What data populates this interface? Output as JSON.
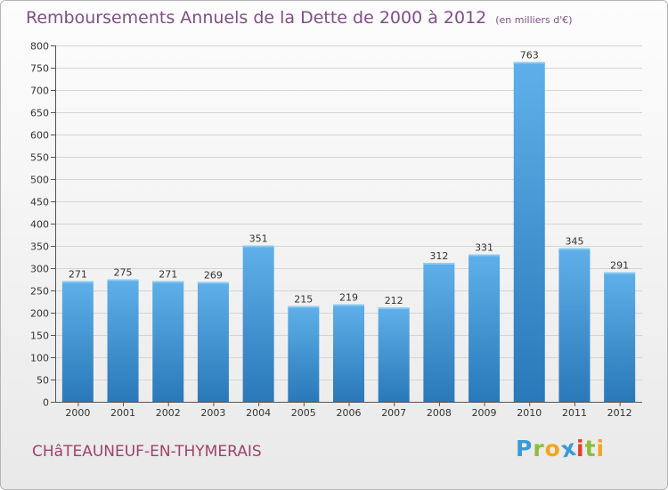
{
  "header": {
    "title": "Remboursements Annuels de la Dette de 2000 à 2012",
    "unit": "(en milliers d'€)"
  },
  "footer": {
    "commune": "CHâTEAUNEUF-EN-THYMERAIS",
    "logo_letters": [
      "P",
      "r",
      "o",
      "x",
      "i",
      "t",
      "i"
    ],
    "logo_colors": [
      "#3a9ad9",
      "#8cbd3d",
      "#f0a61f",
      "#3a9ad9",
      "#e2412e",
      "#8cbd3d",
      "#f0a61f"
    ]
  },
  "colors": {
    "bar_top": "#5fb0ea",
    "bar_bottom": "#2a78b8",
    "axis": "#555555",
    "grid": "#d4d4d4"
  },
  "chart_data": {
    "type": "bar",
    "title": "Remboursements Annuels de la Dette de 2000 à 2012",
    "xlabel": "",
    "ylabel": "",
    "ylim": [
      0,
      800
    ],
    "yticks": [
      "0",
      "50",
      "100",
      "150",
      "200",
      "250",
      "300",
      "350",
      "400",
      "450",
      "500",
      "550",
      "600",
      "650",
      "700",
      "750",
      "800"
    ],
    "grid": true,
    "categories": [
      "2000",
      "2001",
      "2002",
      "2003",
      "2004",
      "2005",
      "2006",
      "2007",
      "2008",
      "2009",
      "2010",
      "2011",
      "2012"
    ],
    "values": [
      271,
      275,
      271,
      269,
      351,
      215,
      219,
      212,
      312,
      331,
      763,
      345,
      291
    ],
    "value_labels": [
      "271",
      "275",
      "271",
      "269",
      "351",
      "215",
      "219",
      "212",
      "312",
      "331",
      "763",
      "345",
      "291"
    ]
  }
}
